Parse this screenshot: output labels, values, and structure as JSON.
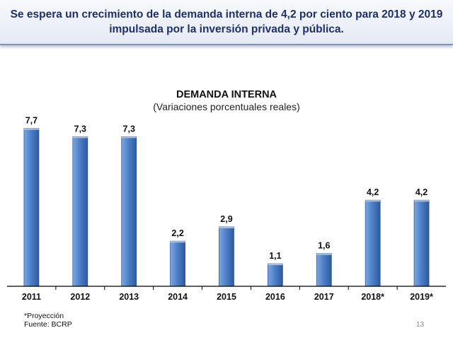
{
  "slide": {
    "title_line1": "Se espera un crecimiento de la demanda interna de 4,2 por ciento para 2018 y 2019",
    "title_line2": "impulsada por la inversión privada y pública.",
    "footnote_projection": "*Proyección",
    "footnote_source": "Fuente: BCRP",
    "page_number": "13"
  },
  "colors": {
    "title": "#1f2f6d",
    "bar": "#4f81c9",
    "bar_dark": "#2e5a9e",
    "axis": "#000000"
  },
  "chart_data": {
    "type": "bar",
    "title": "DEMANDA INTERNA",
    "subtitle": "(Variaciones porcentuales reales)",
    "categories": [
      "2011",
      "2012",
      "2013",
      "2014",
      "2015",
      "2016",
      "2017",
      "2018*",
      "2019*"
    ],
    "values": [
      7.7,
      7.3,
      7.3,
      2.2,
      2.9,
      1.1,
      1.6,
      4.2,
      4.2
    ],
    "value_labels": [
      "7,7",
      "7,3",
      "7,3",
      "2,2",
      "2,9",
      "1,1",
      "1,6",
      "4,2",
      "4,2"
    ],
    "ylim": [
      0,
      8
    ],
    "xlabel": "",
    "ylabel": "",
    "grid": false,
    "legend": false
  }
}
